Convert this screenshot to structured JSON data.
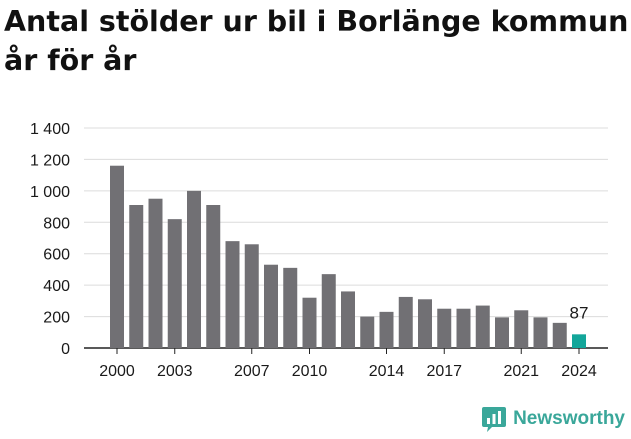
{
  "title_line1": "Antal stölder ur bil i Borlänge kommun",
  "title_line2": "år för år",
  "brand": {
    "name": "Newsworthy",
    "icon": "newsworthy-logo-icon",
    "color": "#3aa79a"
  },
  "colors": {
    "bar": "#717074",
    "highlight": "#13a69a",
    "grid": "#dcdcdc",
    "axis": "#222222"
  },
  "chart_data": {
    "type": "bar",
    "title": "Antal stölder ur bil i Borlänge kommun år för år",
    "categories": [
      "2000",
      "2001",
      "2002",
      "2003",
      "2004",
      "2005",
      "2006",
      "2007",
      "2008",
      "2009",
      "2010",
      "2011",
      "2012",
      "2013",
      "2014",
      "2015",
      "2016",
      "2017",
      "2018",
      "2019",
      "2020",
      "2021",
      "2022",
      "2023",
      "2024"
    ],
    "values": [
      1160,
      910,
      950,
      820,
      1000,
      910,
      680,
      660,
      530,
      510,
      320,
      470,
      360,
      200,
      230,
      325,
      310,
      250,
      250,
      270,
      195,
      240,
      195,
      160,
      87
    ],
    "highlight_index": 24,
    "data_labels": [
      {
        "index": 24,
        "text": "87"
      }
    ],
    "xticks": [
      "2000",
      "2003",
      "2007",
      "2010",
      "2014",
      "2017",
      "2021",
      "2024"
    ],
    "yticks": [
      "0",
      "200",
      "400",
      "600",
      "800",
      "1 000",
      "1 200",
      "1 400"
    ],
    "ylim": [
      0,
      1400
    ],
    "grid": true,
    "xlabel": "",
    "ylabel": ""
  }
}
